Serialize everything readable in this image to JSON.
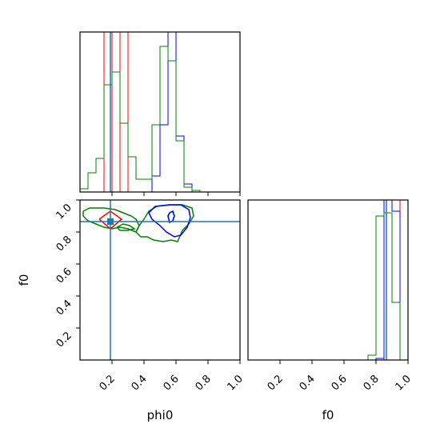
{
  "chart_data": [
    {
      "type": "histogram",
      "panel": "phi0-marginal",
      "xlim": [
        0,
        1
      ],
      "bins": [
        0.0,
        0.05,
        0.1,
        0.15,
        0.2,
        0.25,
        0.3,
        0.35,
        0.4,
        0.45,
        0.5,
        0.55,
        0.6,
        0.65,
        0.7,
        0.75,
        0.8,
        0.85,
        0.9,
        0.95,
        1.0
      ],
      "series": [
        {
          "color": "#ff0000",
          "values": [
            0,
            0,
            0,
            1.0,
            0,
            1.0,
            0,
            0,
            0,
            0,
            0,
            0,
            0,
            0,
            0,
            0,
            0,
            0,
            0,
            0
          ]
        },
        {
          "color": "#0000ff",
          "values": [
            0,
            0,
            0,
            0,
            0,
            0,
            0,
            0,
            0,
            0.1,
            0.42,
            1.0,
            0.35,
            0.05,
            0,
            0,
            0,
            0,
            0,
            0
          ]
        },
        {
          "color": "#008000",
          "values": [
            0.02,
            0.12,
            0.21,
            0.67,
            0.75,
            0.43,
            0.22,
            0.08,
            0.08,
            0.42,
            0.91,
            0.82,
            0.32,
            0.03,
            0.01,
            0,
            0,
            0,
            0,
            0
          ]
        }
      ],
      "truth": {
        "x": 0.19,
        "color": "#1f77b4"
      }
    },
    {
      "type": "contour",
      "panel": "phi0-f0-2d",
      "xlabel": "phi0",
      "ylabel": "f0",
      "xlim": [
        0,
        1
      ],
      "ylim": [
        0,
        1
      ],
      "xticks": [
        "0.2",
        "0.4",
        "0.6",
        "0.8",
        "1.0"
      ],
      "yticks": [
        "0.2",
        "0.4",
        "0.6",
        "0.8",
        "1.0"
      ],
      "series": [
        {
          "color": "#008000",
          "contours": [
            [
              [
                0.02,
                0.93
              ],
              [
                0.06,
                0.95
              ],
              [
                0.15,
                0.95
              ],
              [
                0.22,
                0.94
              ],
              [
                0.27,
                0.92
              ],
              [
                0.32,
                0.9
              ],
              [
                0.35,
                0.88
              ],
              [
                0.37,
                0.84
              ],
              [
                0.35,
                0.8
              ],
              [
                0.3,
                0.82
              ],
              [
                0.25,
                0.83
              ],
              [
                0.2,
                0.82
              ],
              [
                0.15,
                0.83
              ],
              [
                0.1,
                0.85
              ],
              [
                0.05,
                0.87
              ],
              [
                0.02,
                0.9
              ],
              [
                0.02,
                0.93
              ]
            ],
            [
              [
                0.43,
                0.93
              ],
              [
                0.48,
                0.96
              ],
              [
                0.56,
                0.97
              ],
              [
                0.64,
                0.97
              ],
              [
                0.7,
                0.95
              ],
              [
                0.71,
                0.9
              ],
              [
                0.68,
                0.85
              ],
              [
                0.64,
                0.81
              ],
              [
                0.61,
                0.74
              ],
              [
                0.57,
                0.75
              ],
              [
                0.52,
                0.74
              ],
              [
                0.46,
                0.75
              ],
              [
                0.42,
                0.77
              ],
              [
                0.38,
                0.77
              ],
              [
                0.35,
                0.8
              ],
              [
                0.37,
                0.84
              ],
              [
                0.4,
                0.88
              ],
              [
                0.43,
                0.93
              ]
            ],
            [
              [
                0.23,
                0.83
              ],
              [
                0.27,
                0.85
              ],
              [
                0.31,
                0.84
              ],
              [
                0.34,
                0.82
              ],
              [
                0.3,
                0.81
              ],
              [
                0.25,
                0.81
              ],
              [
                0.23,
                0.83
              ]
            ],
            [
              [
                0.56,
                0.92
              ],
              [
                0.58,
                0.93
              ],
              [
                0.59,
                0.9
              ],
              [
                0.58,
                0.87
              ],
              [
                0.56,
                0.86
              ],
              [
                0.55,
                0.9
              ],
              [
                0.56,
                0.92
              ]
            ]
          ]
        },
        {
          "color": "#ff0000",
          "contours": [
            [
              [
                0.12,
                0.88
              ],
              [
                0.19,
                0.93
              ],
              [
                0.26,
                0.88
              ],
              [
                0.19,
                0.82
              ],
              [
                0.12,
                0.88
              ]
            ]
          ]
        },
        {
          "color": "#0000ff",
          "contours": [
            [
              [
                0.43,
                0.92
              ],
              [
                0.47,
                0.96
              ],
              [
                0.56,
                0.97
              ],
              [
                0.63,
                0.97
              ],
              [
                0.68,
                0.94
              ],
              [
                0.69,
                0.89
              ],
              [
                0.67,
                0.83
              ],
              [
                0.63,
                0.78
              ],
              [
                0.59,
                0.77
              ],
              [
                0.54,
                0.8
              ],
              [
                0.5,
                0.84
              ],
              [
                0.45,
                0.88
              ],
              [
                0.43,
                0.92
              ]
            ],
            [
              [
                0.56,
                0.92
              ],
              [
                0.58,
                0.93
              ],
              [
                0.59,
                0.9
              ],
              [
                0.58,
                0.87
              ],
              [
                0.56,
                0.86
              ],
              [
                0.55,
                0.9
              ],
              [
                0.56,
                0.92
              ]
            ]
          ]
        }
      ],
      "truth": {
        "x": 0.19,
        "y": 0.865,
        "color": "#1f77b4"
      }
    },
    {
      "type": "histogram",
      "panel": "f0-marginal",
      "xlabel": "f0",
      "xlim": [
        0,
        1
      ],
      "xticks": [
        "0.2",
        "0.4",
        "0.6",
        "0.8",
        "1.0"
      ],
      "bins": [
        0.0,
        0.05,
        0.1,
        0.15,
        0.2,
        0.25,
        0.3,
        0.35,
        0.4,
        0.45,
        0.5,
        0.55,
        0.6,
        0.65,
        0.7,
        0.75,
        0.8,
        0.85,
        0.9,
        0.95,
        1.0
      ],
      "series": [
        {
          "color": "#ff0000",
          "values": [
            0,
            0,
            0,
            0,
            0,
            0,
            0,
            0,
            0,
            0,
            0,
            0,
            0,
            0,
            0,
            0,
            0,
            1.0,
            1.0,
            0
          ]
        },
        {
          "color": "#0000ff",
          "values": [
            0,
            0,
            0,
            0,
            0,
            0,
            0,
            0,
            0,
            0,
            0,
            0,
            0,
            0,
            0,
            0,
            0.01,
            1.0,
            0.93,
            0
          ]
        },
        {
          "color": "#008000",
          "values": [
            0,
            0,
            0,
            0,
            0,
            0,
            0,
            0,
            0,
            0,
            0,
            0,
            0,
            0,
            0,
            0.03,
            0.9,
            0.92,
            0.36,
            0
          ]
        }
      ],
      "truth": {
        "x": 0.865,
        "color": "#1f77b4"
      }
    }
  ]
}
